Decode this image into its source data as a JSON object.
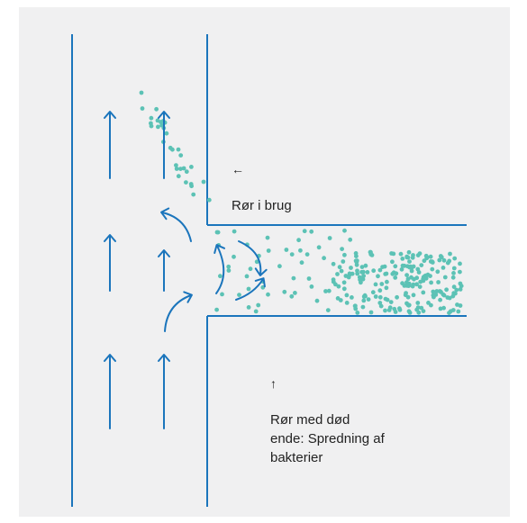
{
  "colors": {
    "background": "#f0f0f1",
    "pipe": "#1b75bc",
    "flow_arrow": "#1b75bc",
    "bacteria": "#5cc2b5",
    "text": "#222222"
  },
  "labels": {
    "pipe_in_use": {
      "glyph": "←",
      "text": "Rør i brug"
    },
    "dead_end_pipe": {
      "glyph": "↑",
      "text": "Rør med død\nende: Spredning af\nbakterier"
    }
  },
  "icons": {
    "main_flow": "up-arrow-icon",
    "eddy": "curved-arrow-icon",
    "bacteria": "dot-icon"
  }
}
